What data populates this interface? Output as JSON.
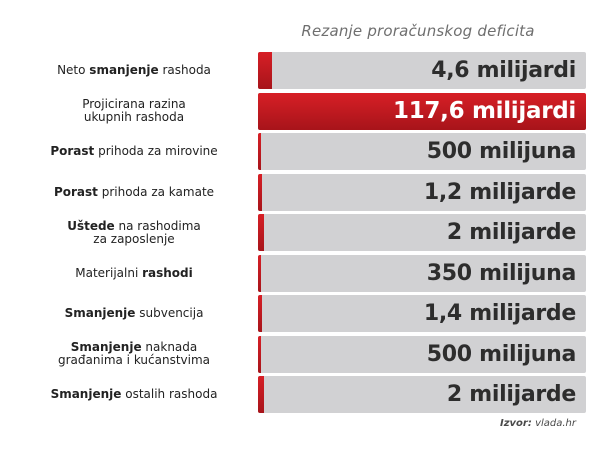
{
  "title": "Rezanje proračunskog deficita",
  "source": {
    "prefix": "Izvor:",
    "text": "vlada.hr"
  },
  "colors": {
    "accent": "#c8161d",
    "track": "#d1d1d3",
    "value_text": "#2d2d2d"
  },
  "chart_data": {
    "type": "bar",
    "orientation": "horizontal",
    "unit": "kn",
    "categories": [
      {
        "parts": [
          {
            "t": "Neto ",
            "b": false
          },
          {
            "t": "smanjenje",
            "b": true
          },
          {
            "t": " rashoda",
            "b": false
          }
        ]
      },
      {
        "parts": [
          {
            "t": "Projicirana razina\nukupnih rashoda",
            "b": false
          }
        ]
      },
      {
        "parts": [
          {
            "t": "Porast",
            "b": true
          },
          {
            "t": " prihoda za mirovine",
            "b": false
          }
        ]
      },
      {
        "parts": [
          {
            "t": "Porast",
            "b": true
          },
          {
            "t": " prihoda za kamate",
            "b": false
          }
        ]
      },
      {
        "parts": [
          {
            "t": "Uštede",
            "b": true
          },
          {
            "t": " na rashodima\nza zaposlenje",
            "b": false
          }
        ]
      },
      {
        "parts": [
          {
            "t": "Materijalni ",
            "b": false
          },
          {
            "t": "rashodi",
            "b": true
          }
        ]
      },
      {
        "parts": [
          {
            "t": "Smanjenje",
            "b": true
          },
          {
            "t": " subvencija",
            "b": false
          }
        ]
      },
      {
        "parts": [
          {
            "t": "Smanjenje",
            "b": true
          },
          {
            "t": " naknada\ngrađanima i kućanstvima",
            "b": false
          }
        ]
      },
      {
        "parts": [
          {
            "t": "Smanjenje",
            "b": true
          },
          {
            "t": " ostalih rashoda",
            "b": false
          }
        ]
      }
    ],
    "value_labels": [
      "4,6 milijardi",
      "117,6 milijardi",
      "500 milijuna",
      "1,2 milijarde",
      "2 milijarde",
      "350 milijuna",
      "1,4 milijarde",
      "500 milijuna",
      "2 milijarde"
    ],
    "values": [
      4.6,
      117.6,
      0.5,
      1.2,
      2,
      0.35,
      1.4,
      0.5,
      2
    ],
    "value_unit_note": "milijardi",
    "highlighted_index": 1,
    "xlim": [
      0,
      117.6
    ]
  }
}
